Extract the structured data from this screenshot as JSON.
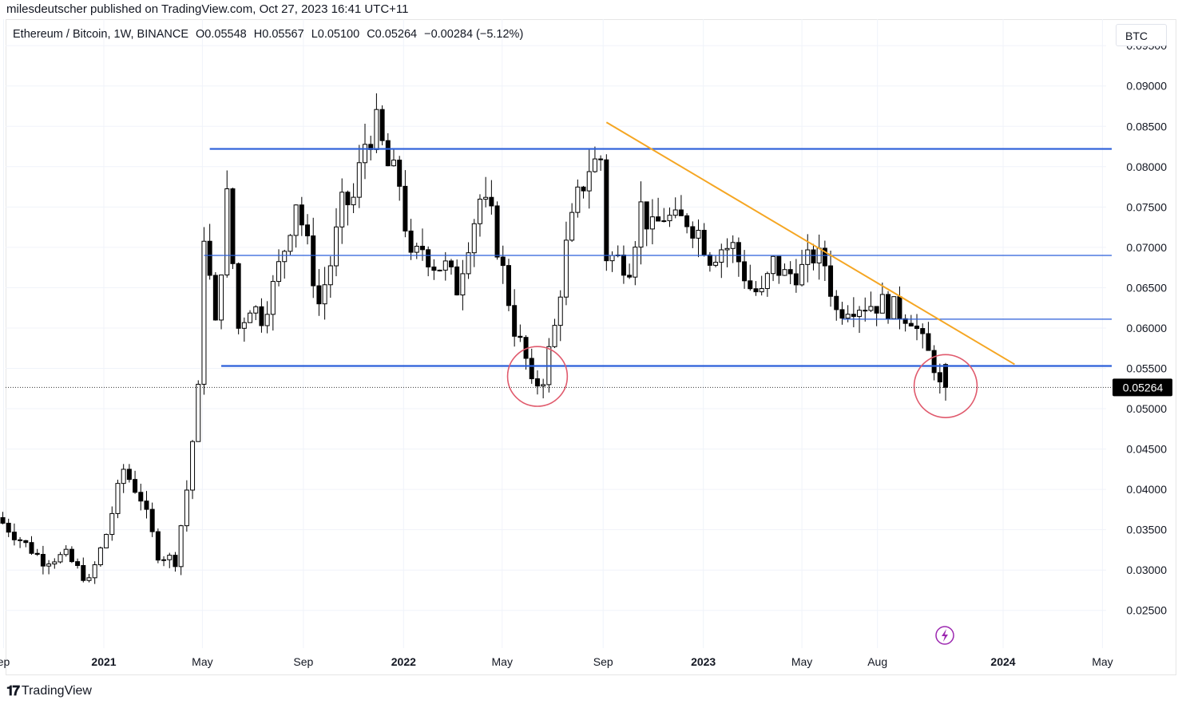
{
  "header": {
    "published": "milesdeutscher published on TradingView.com, Oct 27, 2023 16:41 UTC+11"
  },
  "symbol": {
    "name": "Ethereum / Bitcoin, 1W, BINANCE",
    "open": "O0.05548",
    "high": "H0.05567",
    "low": "L0.05100",
    "close": "C0.05264",
    "change": "−0.00284 (−5.12%)"
  },
  "currency": "BTC",
  "footer": {
    "brand": "TradingView",
    "icon": "tradingview-logo-icon"
  },
  "colors": {
    "support_resistance": "#2b5fd9",
    "trendline": "#f5a623",
    "circle": "#e05a6d",
    "candle_up": "#ffffff",
    "candle_down": "#000000",
    "price_label_bg": "#000000"
  },
  "chart_data": {
    "type": "candlestick",
    "title": "Ethereum / Bitcoin, 1W, BINANCE",
    "ylim": [
      0.0225,
      0.0968
    ],
    "y_ticks": [
      "0.09500",
      "0.09000",
      "0.08500",
      "0.08000",
      "0.07500",
      "0.07000",
      "0.06500",
      "0.06000",
      "0.05500",
      "0.05000",
      "0.04500",
      "0.04000",
      "0.03500",
      "0.03000",
      "0.02500"
    ],
    "x_ticks": [
      {
        "label": "ep",
        "date": "2020-09-01",
        "bold": false
      },
      {
        "label": "2021",
        "date": "2021-01-01",
        "bold": true
      },
      {
        "label": "May",
        "date": "2021-05-01",
        "bold": false
      },
      {
        "label": "Sep",
        "date": "2021-09-01",
        "bold": false
      },
      {
        "label": "2022",
        "date": "2022-01-01",
        "bold": true
      },
      {
        "label": "May",
        "date": "2022-05-01",
        "bold": false
      },
      {
        "label": "Sep",
        "date": "2022-09-01",
        "bold": false
      },
      {
        "label": "2023",
        "date": "2023-01-01",
        "bold": true
      },
      {
        "label": "May",
        "date": "2023-05-01",
        "bold": false
      },
      {
        "label": "Aug",
        "date": "2023-08-01",
        "bold": false
      },
      {
        "label": "2024",
        "date": "2024-01-01",
        "bold": true
      },
      {
        "label": "May",
        "date": "2024-05-01",
        "bold": false
      }
    ],
    "current_price": "0.05264",
    "anchor_points": [
      [
        "2020-08-31",
        0.0365
      ],
      [
        "2020-09-28",
        0.0338
      ],
      [
        "2020-10-26",
        0.0312
      ],
      [
        "2020-11-23",
        0.0318
      ],
      [
        "2020-12-21",
        0.0285
      ],
      [
        "2021-01-11",
        0.0345
      ],
      [
        "2021-02-01",
        0.0425
      ],
      [
        "2021-02-22",
        0.039
      ],
      [
        "2021-03-15",
        0.032
      ],
      [
        "2021-04-05",
        0.0312
      ],
      [
        "2021-04-19",
        0.04
      ],
      [
        "2021-05-03",
        0.052
      ],
      [
        "2021-05-10",
        0.072
      ],
      [
        "2021-05-24",
        0.06
      ],
      [
        "2021-06-07",
        0.076
      ],
      [
        "2021-06-21",
        0.06
      ],
      [
        "2021-07-05",
        0.063
      ],
      [
        "2021-07-19",
        0.0615
      ],
      [
        "2021-08-02",
        0.065
      ],
      [
        "2021-08-16",
        0.07
      ],
      [
        "2021-08-30",
        0.076
      ],
      [
        "2021-09-13",
        0.07
      ],
      [
        "2021-09-27",
        0.063
      ],
      [
        "2021-10-11",
        0.068
      ],
      [
        "2021-10-25",
        0.075
      ],
      [
        "2021-11-08",
        0.076
      ],
      [
        "2021-11-22",
        0.083
      ],
      [
        "2021-12-06",
        0.085
      ],
      [
        "2021-12-20",
        0.08
      ],
      [
        "2022-01-03",
        0.078
      ],
      [
        "2022-01-17",
        0.068
      ],
      [
        "2022-01-31",
        0.07
      ],
      [
        "2022-02-14",
        0.068
      ],
      [
        "2022-02-28",
        0.0675
      ],
      [
        "2022-03-14",
        0.065
      ],
      [
        "2022-03-28",
        0.071
      ],
      [
        "2022-04-11",
        0.076
      ],
      [
        "2022-04-25",
        0.0735
      ],
      [
        "2022-05-09",
        0.067
      ],
      [
        "2022-05-23",
        0.06
      ],
      [
        "2022-06-06",
        0.056
      ],
      [
        "2022-06-13",
        0.0525
      ],
      [
        "2022-06-27",
        0.054
      ],
      [
        "2022-07-11",
        0.06
      ],
      [
        "2022-07-25",
        0.07
      ],
      [
        "2022-08-08",
        0.076
      ],
      [
        "2022-08-22",
        0.08
      ],
      [
        "2022-09-05",
        0.081
      ],
      [
        "2022-09-12",
        0.069
      ],
      [
        "2022-09-26",
        0.0685
      ],
      [
        "2022-10-10",
        0.068
      ],
      [
        "2022-10-24",
        0.075
      ],
      [
        "2022-11-07",
        0.072
      ],
      [
        "2022-11-21",
        0.074
      ],
      [
        "2022-12-05",
        0.073
      ],
      [
        "2022-12-19",
        0.0735
      ],
      [
        "2023-01-02",
        0.072
      ],
      [
        "2023-01-16",
        0.069
      ],
      [
        "2023-01-30",
        0.07
      ],
      [
        "2023-02-13",
        0.07
      ],
      [
        "2023-03-06",
        0.065
      ],
      [
        "2023-03-20",
        0.064
      ],
      [
        "2023-04-03",
        0.068
      ],
      [
        "2023-04-17",
        0.0665
      ],
      [
        "2023-05-08",
        0.0672
      ],
      [
        "2023-05-22",
        0.069
      ],
      [
        "2023-06-05",
        0.068
      ],
      [
        "2023-06-19",
        0.062
      ],
      [
        "2023-07-03",
        0.063
      ],
      [
        "2023-07-24",
        0.063
      ],
      [
        "2023-08-14",
        0.063
      ],
      [
        "2023-09-04",
        0.062
      ],
      [
        "2023-09-18",
        0.0615
      ],
      [
        "2023-10-02",
        0.058
      ],
      [
        "2023-10-16",
        0.0555
      ],
      [
        "2023-10-23",
        0.05264
      ]
    ],
    "last_candle": {
      "date": "2023-10-23",
      "open": 0.05548,
      "high": 0.05567,
      "low": 0.051,
      "close": 0.05264
    },
    "annotations": [
      {
        "type": "horizontal_segment",
        "name": "resistance-top",
        "from": "2021-05-10",
        "to": "2024-09-01",
        "y": 0.0822,
        "width": "thick"
      },
      {
        "type": "horizontal_segment",
        "name": "mid-level",
        "from": "2021-05-03",
        "to": "2024-09-01",
        "y": 0.069,
        "width": "thin"
      },
      {
        "type": "horizontal_segment",
        "name": "support",
        "from": "2021-05-24",
        "to": "2024-09-01",
        "y": 0.0553,
        "width": "thick"
      },
      {
        "type": "horizontal_segment",
        "name": "short-support",
        "from": "2023-06-19",
        "to": "2024-09-01",
        "y": 0.0611,
        "width": "thin"
      },
      {
        "type": "trendline",
        "name": "descending-trendline",
        "from": [
          "2022-09-05",
          0.0855
        ],
        "to": [
          "2024-01-15",
          0.0555
        ]
      },
      {
        "type": "circle",
        "name": "circle-2022-low",
        "center": [
          "2022-06-13",
          0.054
        ],
        "radius_y": 0.0037
      },
      {
        "type": "circle",
        "name": "circle-current",
        "center": [
          "2023-10-23",
          0.0528
        ],
        "radius_y": 0.0039
      }
    ]
  }
}
